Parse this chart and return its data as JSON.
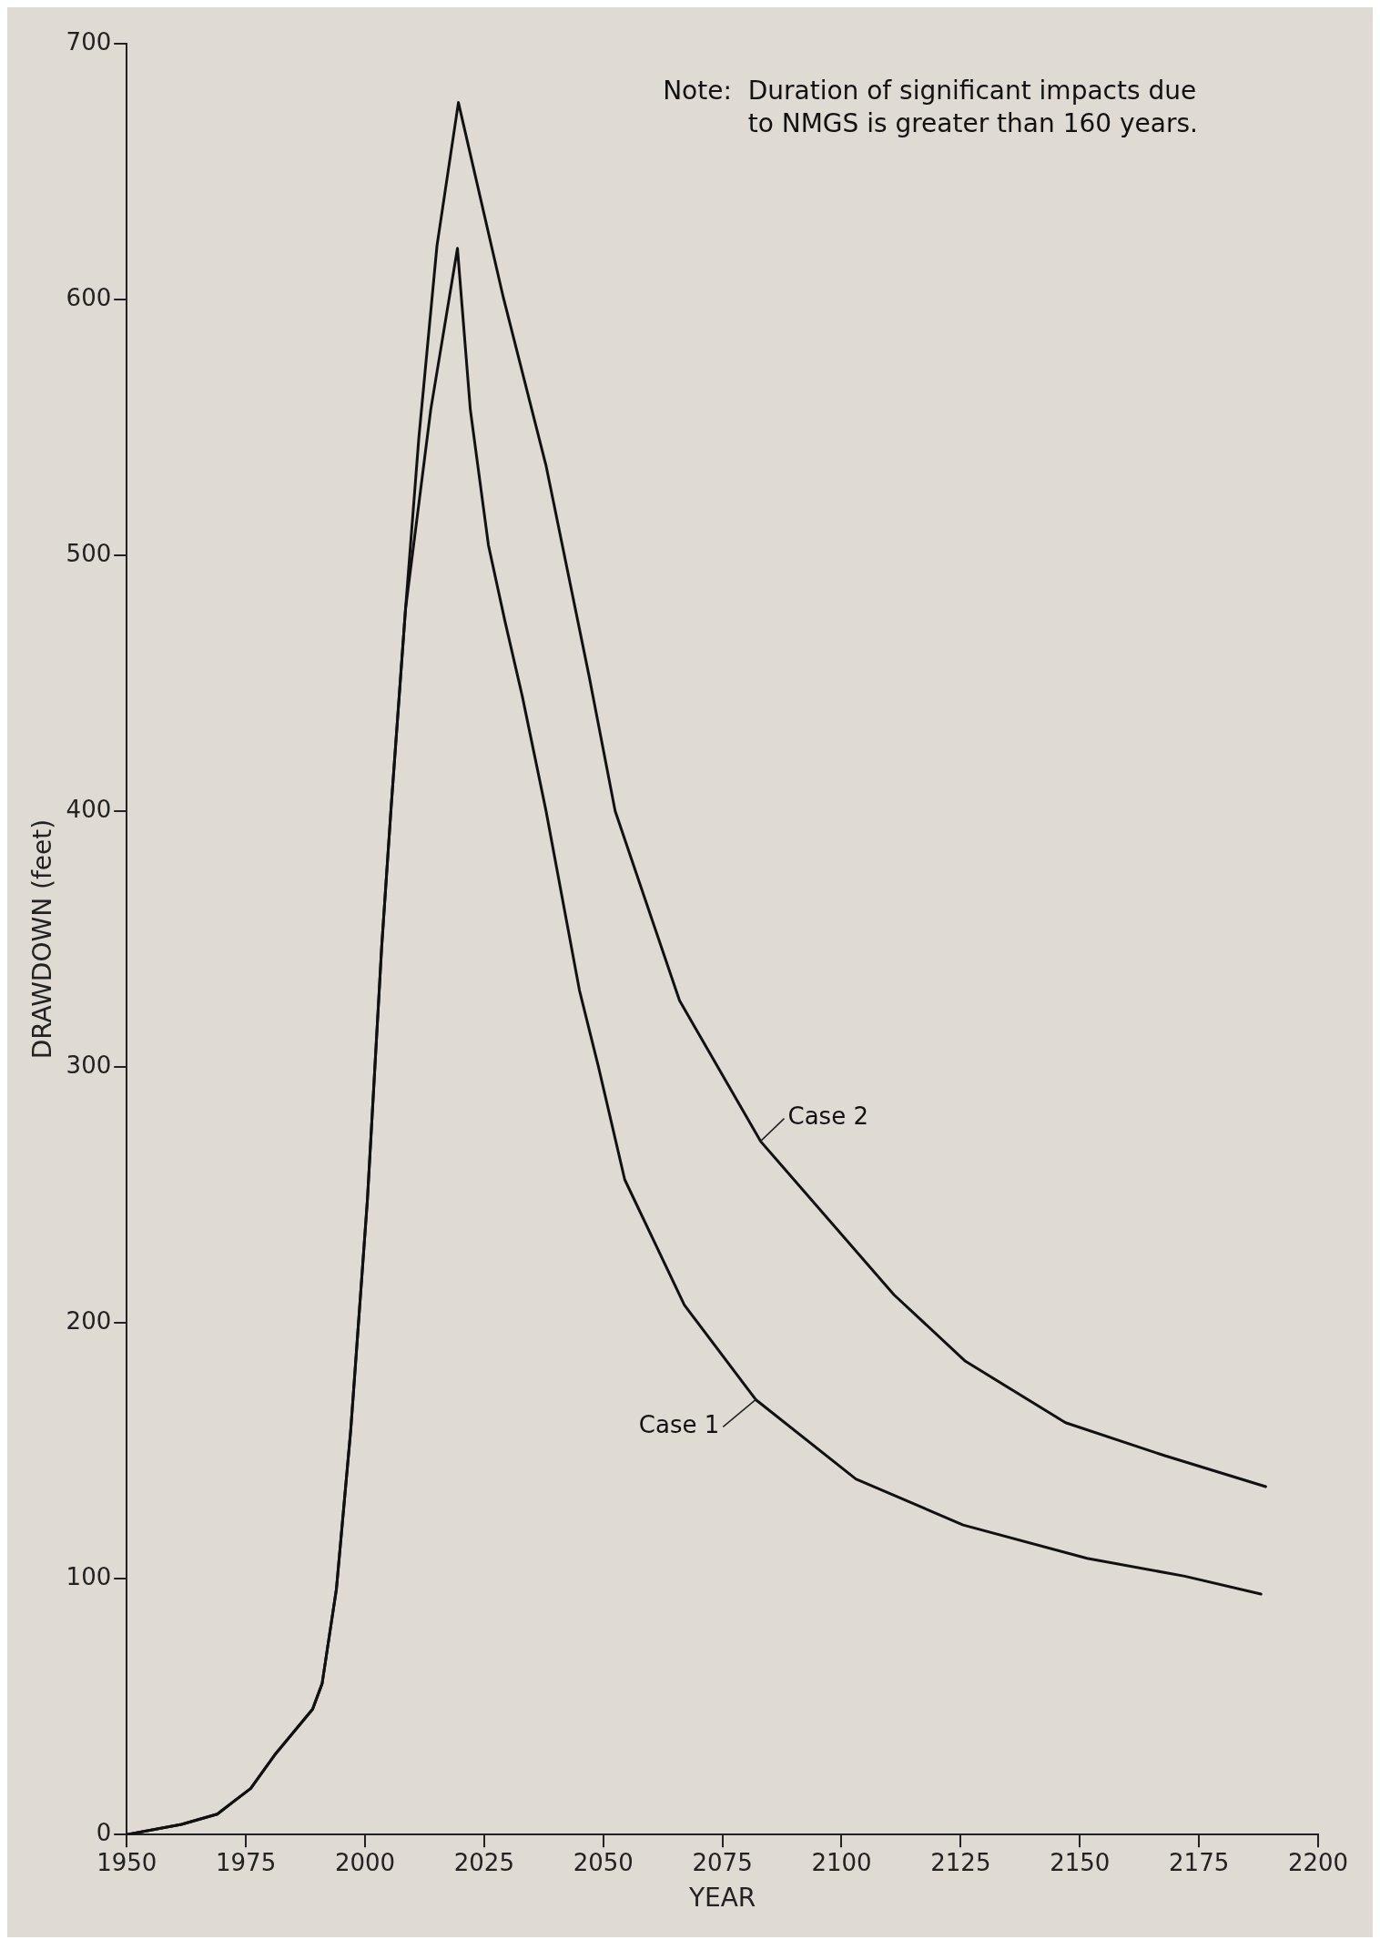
{
  "chart_data": {
    "type": "line",
    "xlabel": "YEAR",
    "ylabel": "DRAWDOWN (feet)",
    "xlim": [
      1950,
      2200
    ],
    "xticks": [
      1950,
      1975,
      2000,
      2025,
      2050,
      2075,
      2100,
      2125,
      2150,
      2175,
      2200
    ],
    "ylim": [
      0,
      700
    ],
    "yticks": [
      0,
      100,
      200,
      300,
      400,
      500,
      600,
      700
    ],
    "grid": false,
    "legend": false,
    "marker": "none",
    "line_style": "solid",
    "annotations": [
      "Note:  Duration of significant impacts due\nto NMGS is greater than 160 years."
    ],
    "series": [
      {
        "name": "Case 1",
        "color": "#111111",
        "x": [
          1950,
          1961.5,
          1969,
          1976,
          1981,
          1989,
          1991,
          1994,
          1997,
          2000.5,
          2003.5,
          2005.5,
          2008.5,
          2013.8,
          2019.4,
          2022.1,
          2025.9,
          2029.4,
          2033,
          2038,
          2045,
          2049,
          2054.5,
          2067,
          2082,
          2103,
          2125.5,
          2151.5,
          2172,
          2188
        ],
        "values": [
          0,
          4,
          8,
          18,
          31,
          49,
          59,
          96,
          158,
          248,
          347,
          402,
          479,
          557,
          620,
          557,
          504,
          474,
          445,
          400,
          330,
          300,
          256,
          207,
          170,
          139,
          121,
          108,
          101,
          94
        ]
      },
      {
        "name": "Case 2",
        "color": "#111111",
        "x": [
          1950,
          1961.5,
          1969,
          1976,
          1981,
          1989,
          1991,
          1994,
          1997,
          2000.5,
          2003.5,
          2005.5,
          2008.5,
          2011.3,
          2015.1,
          2019.6,
          2029,
          2038,
          2047,
          2052.5,
          2066,
          2083,
          2111,
          2126,
          2147,
          2168,
          2189
        ],
        "values": [
          0,
          4,
          8,
          18,
          31,
          49,
          59,
          96,
          158,
          248,
          347,
          402,
          479,
          546,
          621,
          677,
          601,
          535,
          453,
          400,
          326,
          271,
          211,
          185,
          161,
          148,
          136
        ]
      }
    ]
  }
}
